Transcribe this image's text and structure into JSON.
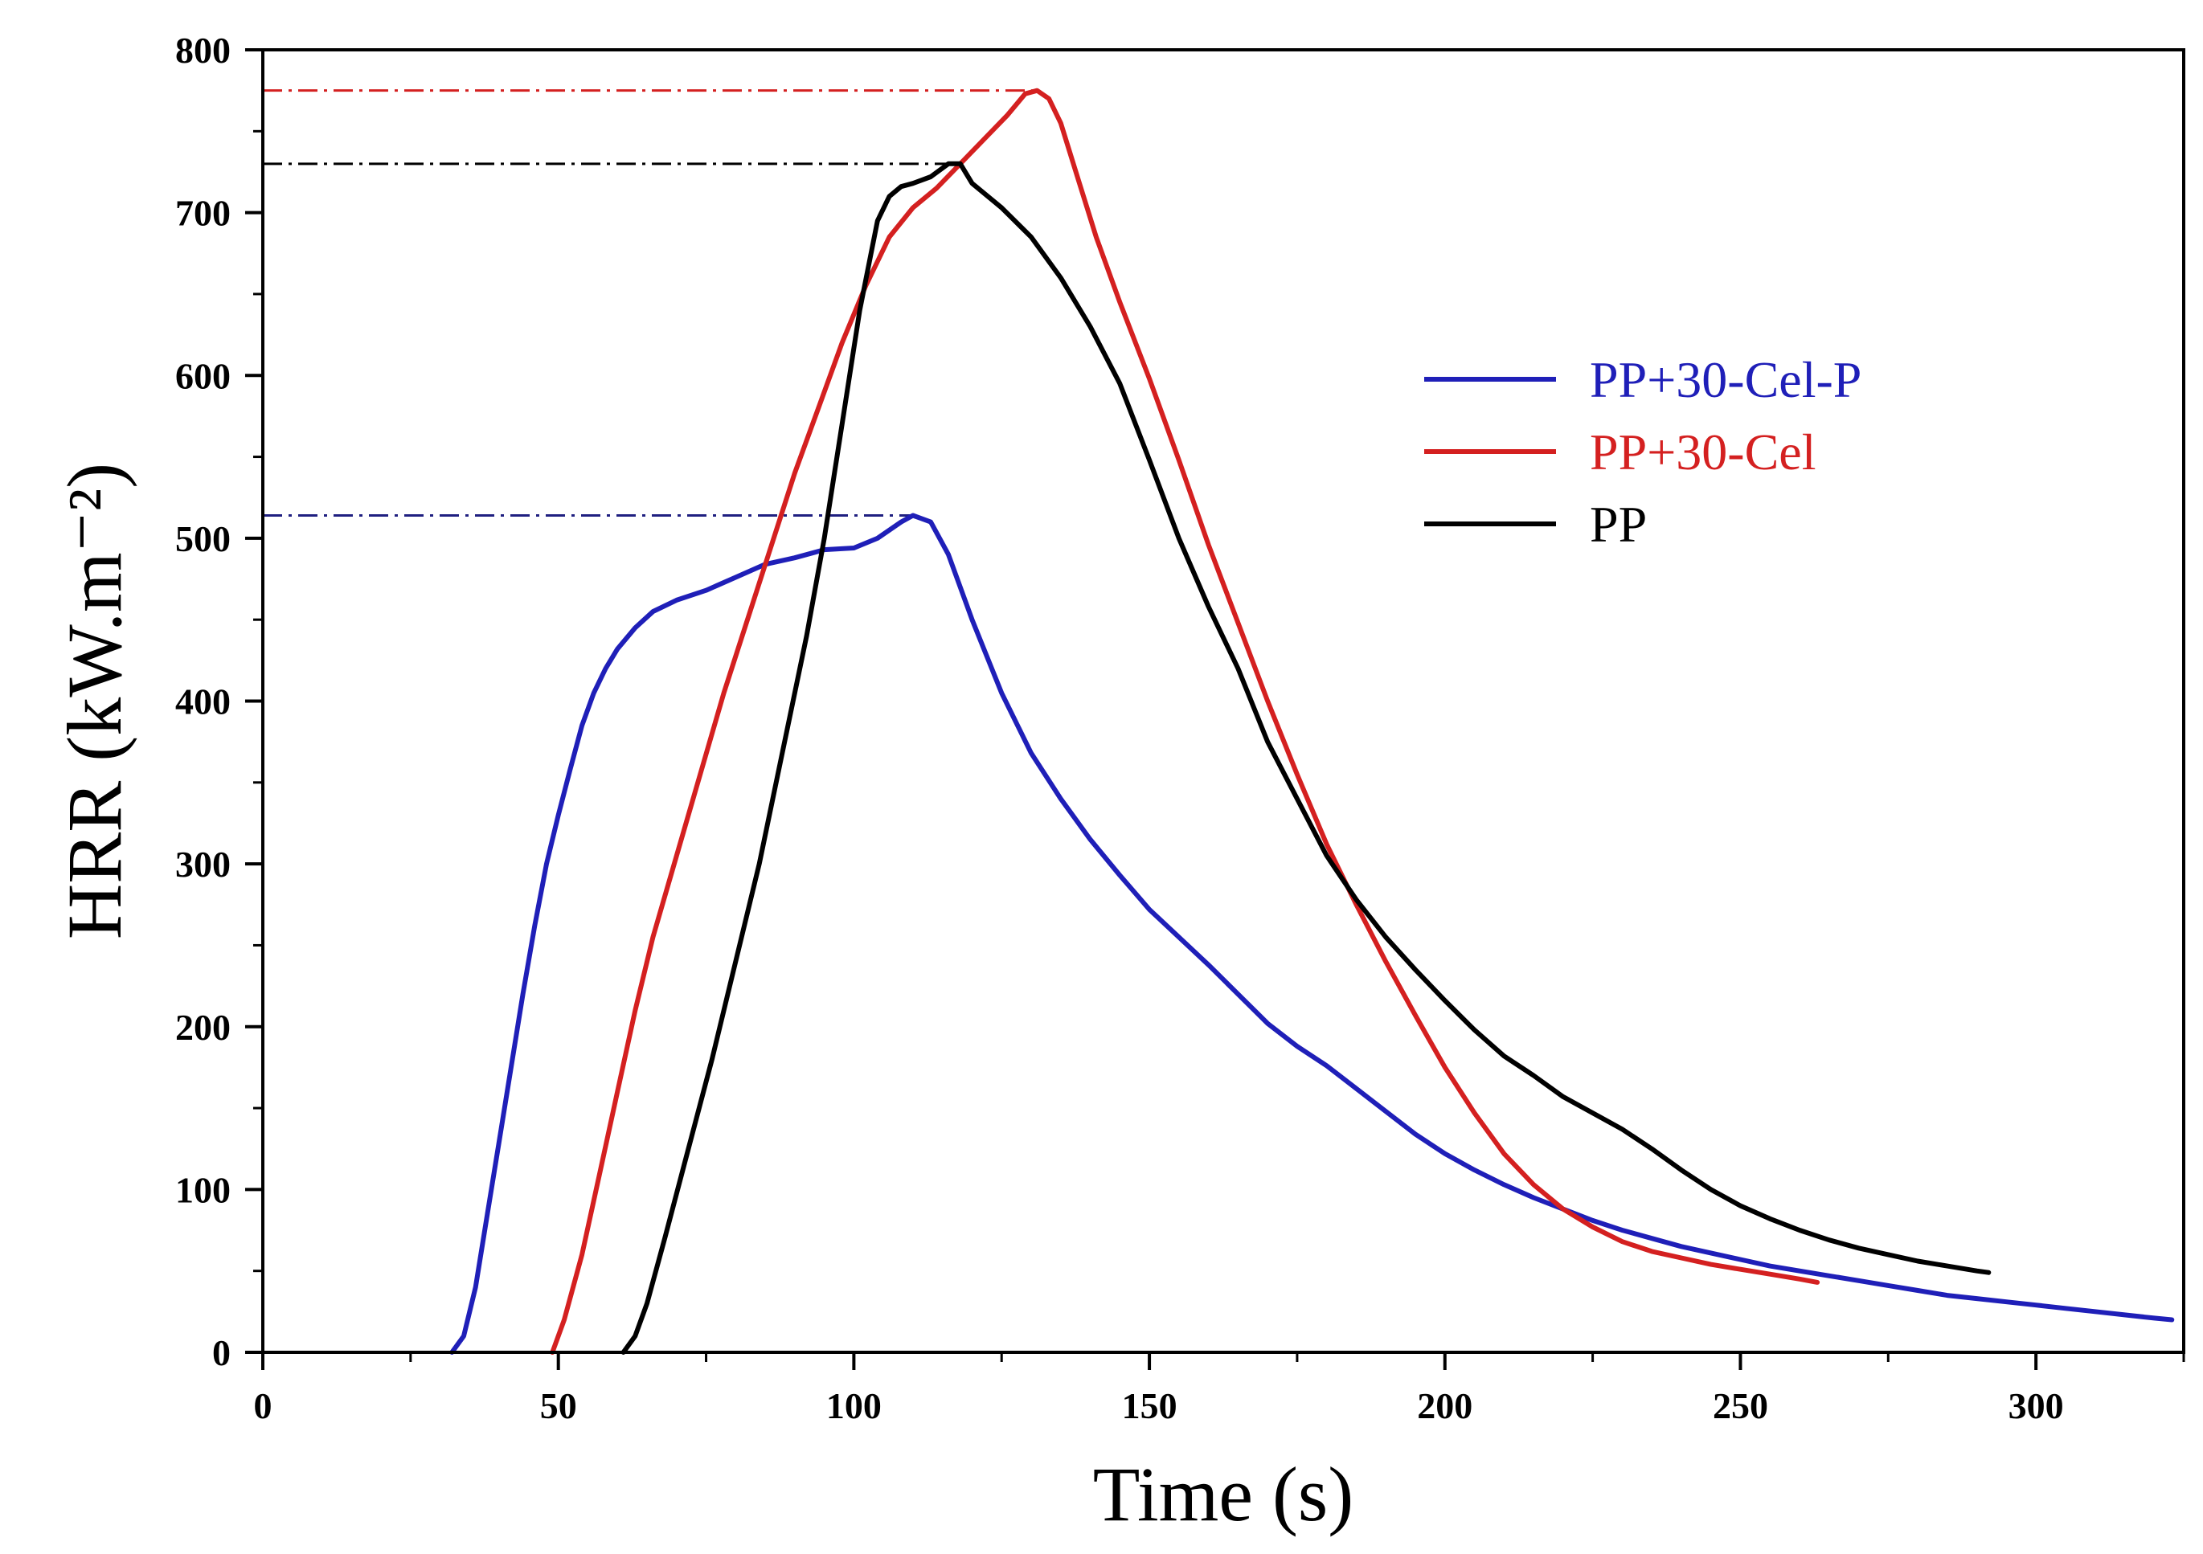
{
  "chart_data": {
    "type": "line",
    "title": "",
    "xlabel": "Time (s)",
    "ylabel": "HRR (kW.m⁻²)",
    "xlim": [
      0,
      325
    ],
    "ylim": [
      0,
      800
    ],
    "x_ticks": [
      0,
      50,
      100,
      150,
      200,
      250,
      300
    ],
    "y_ticks": [
      0,
      100,
      200,
      300,
      400,
      500,
      600,
      700,
      800
    ],
    "grid": false,
    "legend_position": "right",
    "series": [
      {
        "name": "PP+30-Cel-P",
        "color": "#1f1fb8",
        "points": [
          [
            32,
            0
          ],
          [
            34,
            10
          ],
          [
            36,
            40
          ],
          [
            38,
            85
          ],
          [
            40,
            130
          ],
          [
            42,
            175
          ],
          [
            44,
            220
          ],
          [
            46,
            262
          ],
          [
            48,
            300
          ],
          [
            50,
            330
          ],
          [
            52,
            358
          ],
          [
            54,
            385
          ],
          [
            56,
            405
          ],
          [
            58,
            420
          ],
          [
            60,
            432
          ],
          [
            63,
            445
          ],
          [
            66,
            455
          ],
          [
            70,
            462
          ],
          [
            75,
            468
          ],
          [
            80,
            476
          ],
          [
            85,
            484
          ],
          [
            90,
            488
          ],
          [
            95,
            493
          ],
          [
            100,
            494
          ],
          [
            104,
            500
          ],
          [
            108,
            510
          ],
          [
            110,
            514
          ],
          [
            113,
            510
          ],
          [
            116,
            490
          ],
          [
            120,
            450
          ],
          [
            125,
            405
          ],
          [
            130,
            368
          ],
          [
            135,
            340
          ],
          [
            140,
            315
          ],
          [
            145,
            293
          ],
          [
            150,
            272
          ],
          [
            155,
            255
          ],
          [
            160,
            238
          ],
          [
            165,
            220
          ],
          [
            170,
            202
          ],
          [
            175,
            188
          ],
          [
            180,
            176
          ],
          [
            185,
            162
          ],
          [
            190,
            148
          ],
          [
            195,
            134
          ],
          [
            200,
            122
          ],
          [
            205,
            112
          ],
          [
            210,
            103
          ],
          [
            215,
            95
          ],
          [
            220,
            88
          ],
          [
            225,
            81
          ],
          [
            230,
            75
          ],
          [
            235,
            70
          ],
          [
            240,
            65
          ],
          [
            245,
            61
          ],
          [
            250,
            57
          ],
          [
            255,
            53
          ],
          [
            260,
            50
          ],
          [
            265,
            47
          ],
          [
            270,
            44
          ],
          [
            275,
            41
          ],
          [
            280,
            38
          ],
          [
            285,
            35
          ],
          [
            290,
            33
          ],
          [
            295,
            31
          ],
          [
            300,
            29
          ],
          [
            305,
            27
          ],
          [
            310,
            25
          ],
          [
            315,
            23
          ],
          [
            320,
            21
          ],
          [
            323,
            20
          ]
        ]
      },
      {
        "name": "PP+30-Cel",
        "color": "#d42020",
        "points": [
          [
            49,
            0
          ],
          [
            51,
            20
          ],
          [
            54,
            60
          ],
          [
            57,
            110
          ],
          [
            60,
            160
          ],
          [
            63,
            210
          ],
          [
            66,
            255
          ],
          [
            70,
            305
          ],
          [
            74,
            355
          ],
          [
            78,
            405
          ],
          [
            82,
            450
          ],
          [
            86,
            495
          ],
          [
            90,
            540
          ],
          [
            94,
            580
          ],
          [
            98,
            620
          ],
          [
            102,
            655
          ],
          [
            106,
            685
          ],
          [
            110,
            703
          ],
          [
            114,
            715
          ],
          [
            118,
            730
          ],
          [
            122,
            745
          ],
          [
            126,
            760
          ],
          [
            129,
            773
          ],
          [
            131,
            775
          ],
          [
            133,
            770
          ],
          [
            135,
            755
          ],
          [
            138,
            720
          ],
          [
            141,
            685
          ],
          [
            145,
            645
          ],
          [
            150,
            598
          ],
          [
            155,
            548
          ],
          [
            160,
            496
          ],
          [
            165,
            448
          ],
          [
            170,
            400
          ],
          [
            175,
            355
          ],
          [
            180,
            312
          ],
          [
            185,
            275
          ],
          [
            190,
            240
          ],
          [
            195,
            207
          ],
          [
            200,
            175
          ],
          [
            205,
            147
          ],
          [
            210,
            122
          ],
          [
            215,
            103
          ],
          [
            220,
            88
          ],
          [
            225,
            77
          ],
          [
            230,
            68
          ],
          [
            235,
            62
          ],
          [
            240,
            58
          ],
          [
            245,
            54
          ],
          [
            250,
            51
          ],
          [
            255,
            48
          ],
          [
            260,
            45
          ],
          [
            263,
            43
          ]
        ]
      },
      {
        "name": "PP",
        "color": "#000000",
        "points": [
          [
            61,
            0
          ],
          [
            63,
            10
          ],
          [
            65,
            30
          ],
          [
            68,
            70
          ],
          [
            72,
            125
          ],
          [
            76,
            180
          ],
          [
            80,
            240
          ],
          [
            84,
            300
          ],
          [
            88,
            370
          ],
          [
            92,
            440
          ],
          [
            95,
            500
          ],
          [
            98,
            570
          ],
          [
            101,
            640
          ],
          [
            104,
            695
          ],
          [
            106,
            710
          ],
          [
            108,
            716
          ],
          [
            110,
            718
          ],
          [
            113,
            722
          ],
          [
            116,
            730
          ],
          [
            118,
            730
          ],
          [
            120,
            718
          ],
          [
            125,
            703
          ],
          [
            130,
            685
          ],
          [
            135,
            660
          ],
          [
            140,
            630
          ],
          [
            145,
            595
          ],
          [
            150,
            548
          ],
          [
            155,
            500
          ],
          [
            160,
            458
          ],
          [
            165,
            420
          ],
          [
            170,
            375
          ],
          [
            175,
            340
          ],
          [
            180,
            305
          ],
          [
            185,
            278
          ],
          [
            190,
            255
          ],
          [
            195,
            235
          ],
          [
            200,
            216
          ],
          [
            205,
            198
          ],
          [
            210,
            182
          ],
          [
            215,
            170
          ],
          [
            220,
            157
          ],
          [
            225,
            147
          ],
          [
            230,
            137
          ],
          [
            235,
            125
          ],
          [
            240,
            112
          ],
          [
            245,
            100
          ],
          [
            250,
            90
          ],
          [
            255,
            82
          ],
          [
            260,
            75
          ],
          [
            265,
            69
          ],
          [
            270,
            64
          ],
          [
            275,
            60
          ],
          [
            280,
            56
          ],
          [
            285,
            53
          ],
          [
            290,
            50
          ],
          [
            292,
            49
          ]
        ]
      }
    ],
    "reference_lines": [
      {
        "series": "PP+30-Cel",
        "y": 775,
        "x_from": 0,
        "x_to": 131,
        "color": "#d42020"
      },
      {
        "series": "PP",
        "y": 730,
        "x_from": 0,
        "x_to": 118,
        "color": "#000000"
      },
      {
        "series": "PP+30-Cel-P",
        "y": 514,
        "x_from": 0,
        "x_to": 110,
        "color": "#1f1f80"
      }
    ]
  }
}
